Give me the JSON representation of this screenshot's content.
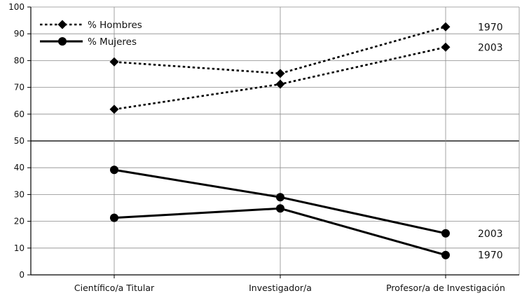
{
  "chart_data": {
    "type": "line",
    "title": "",
    "xlabel": "",
    "ylabel": "",
    "ylim": [
      0,
      100
    ],
    "yticks": [
      0,
      10,
      20,
      30,
      40,
      50,
      60,
      70,
      80,
      90,
      100
    ],
    "categories": [
      "Científico/a Titular",
      "Investigador/a",
      "Profesor/a de Investigación"
    ],
    "grid": true,
    "legend": "top-left",
    "legend_entries": [
      {
        "label": "% Hombres",
        "line_style": "dotted",
        "marker": "diamond"
      },
      {
        "label": "% Mujeres",
        "line_style": "solid",
        "marker": "circle"
      }
    ],
    "series": [
      {
        "group": "% Hombres",
        "year": "1970",
        "values": [
          79.5,
          75.2,
          92.6
        ],
        "line_style": "dotted",
        "marker": "diamond"
      },
      {
        "group": "% Hombres",
        "year": "2003",
        "values": [
          61.8,
          71.2,
          85.0
        ],
        "line_style": "dotted",
        "marker": "diamond"
      },
      {
        "group": "% Mujeres",
        "year": "1970",
        "values": [
          21.3,
          24.8,
          7.4
        ],
        "line_style": "solid",
        "marker": "circle"
      },
      {
        "group": "% Mujeres",
        "year": "2003",
        "values": [
          39.2,
          29.0,
          15.5
        ],
        "line_style": "solid",
        "marker": "circle"
      }
    ],
    "annotations": [
      {
        "text": "1970",
        "near_series": 0
      },
      {
        "text": "2003",
        "near_series": 1
      },
      {
        "text": "2003",
        "near_series": 3
      },
      {
        "text": "1970",
        "near_series": 2
      }
    ],
    "colors": {
      "line": "#000000",
      "grid": "#8c8c8c",
      "text": "#111111"
    }
  }
}
